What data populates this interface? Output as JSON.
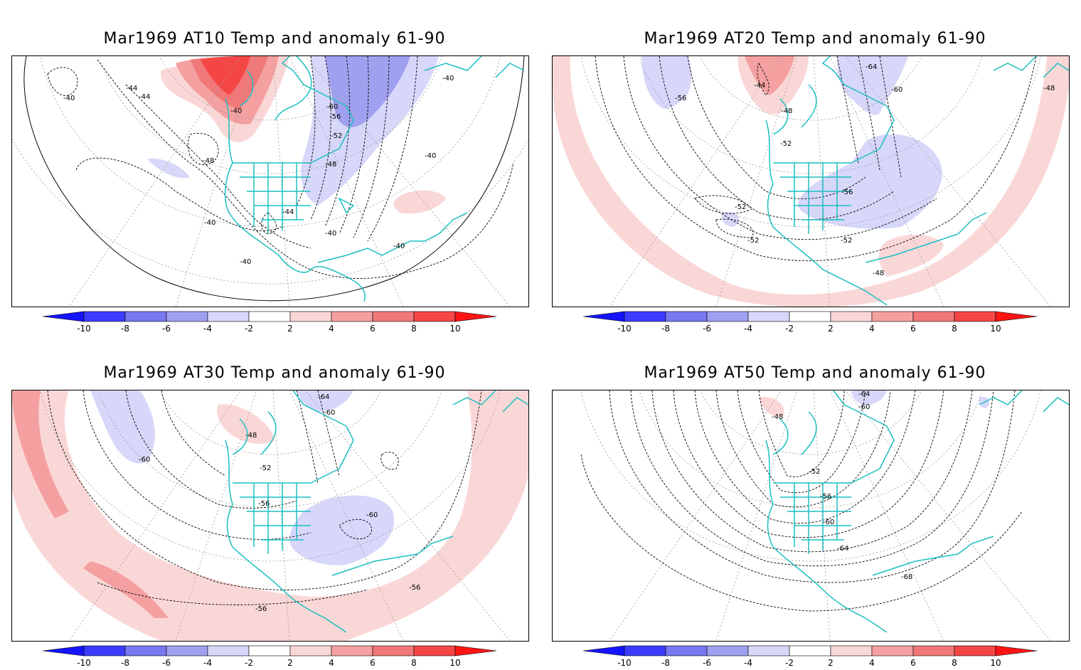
{
  "panels": [
    {
      "title": "Mar1969 AT10 Temp and anomaly 61-90",
      "contour_labels": [
        "-40",
        "-44",
        "-44",
        "-40",
        "-48",
        "-60",
        "-56",
        "-52",
        "-48",
        "-40",
        "-44",
        "-40",
        "-40",
        "-40",
        "-40",
        "-40"
      ]
    },
    {
      "title": "Mar1969 AT20 Temp and anomaly 61-90",
      "contour_labels": [
        "-56",
        "-44",
        "-48",
        "-64",
        "-60",
        "-48",
        "-52",
        "-56",
        "-52",
        "-52",
        "-52",
        "-48"
      ]
    },
    {
      "title": "Mar1969 AT30 Temp and anomaly 61-90",
      "contour_labels": [
        "-64",
        "-60",
        "-60",
        "-48",
        "-52",
        "-56",
        "-60",
        "-56",
        "-56"
      ]
    },
    {
      "title": "Mar1969 AT50 Temp and anomaly 61-90",
      "contour_labels": [
        "-64",
        "-60",
        "-48",
        "-52",
        "-56",
        "-60",
        "-64",
        "-68"
      ]
    }
  ],
  "colorbar": {
    "tick_labels": [
      "-10",
      "-8",
      "-6",
      "-4",
      "-2",
      "2",
      "4",
      "6",
      "8",
      "10"
    ],
    "colors": [
      "#1414ff",
      "#3c3cff",
      "#7878f0",
      "#a0a0f0",
      "#d7d7fa",
      "#ffffff",
      "#fad7d7",
      "#f5a0a0",
      "#f07878",
      "#f54646",
      "#ff1414"
    ]
  }
}
